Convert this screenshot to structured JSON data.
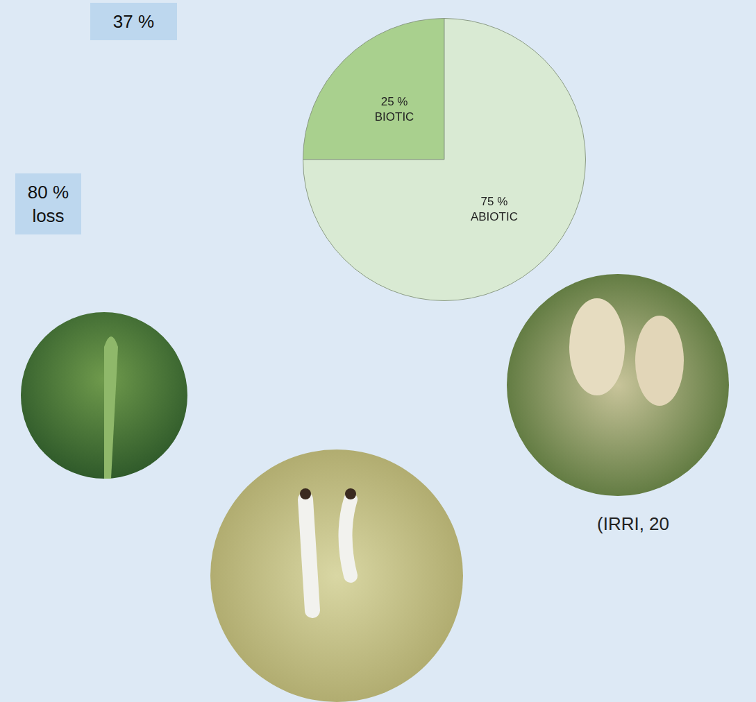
{
  "chart_data": {
    "type": "pie",
    "categories": [
      "BIOTIC",
      "ABIOTIC"
    ],
    "values": [
      25,
      75
    ],
    "value_labels": [
      "25 %",
      "75 %"
    ],
    "colors": [
      "#a9d08e",
      "#d9ead3"
    ],
    "data_labels": true,
    "annotations": [
      "37 %",
      "80 % loss",
      "(IRRI, 20"
    ]
  }
}
